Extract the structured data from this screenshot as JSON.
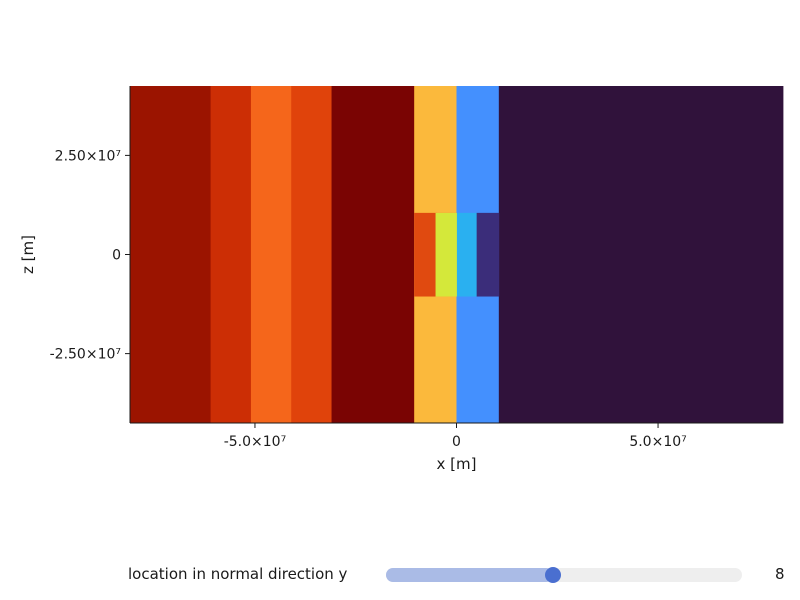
{
  "chart_data": {
    "type": "heatmap",
    "xlabel": "x [m]",
    "ylabel": "z [m]",
    "xlim": [
      -81000000,
      81000000
    ],
    "ylim": [
      -42500000,
      42500000
    ],
    "x_ticks": [
      {
        "value": -50000000,
        "label": "-5.0×10⁷"
      },
      {
        "value": 0,
        "label": "0"
      },
      {
        "value": 50000000,
        "label": "5.0×10⁷"
      }
    ],
    "y_ticks": [
      {
        "value": 25000000,
        "label": "2.50×10⁷"
      },
      {
        "value": 0,
        "label": "0"
      },
      {
        "value": -25000000,
        "label": "-2.50×10⁷"
      }
    ],
    "cells": [
      {
        "x0": -81000000,
        "x1": -61000000,
        "z0": -42500000,
        "z1": 42500000,
        "color": "#9b1400"
      },
      {
        "x0": -61000000,
        "x1": -51000000,
        "z0": -42500000,
        "z1": 42500000,
        "color": "#cc2e05"
      },
      {
        "x0": -51000000,
        "x1": -41000000,
        "z0": -42500000,
        "z1": 42500000,
        "color": "#f5661b"
      },
      {
        "x0": -41000000,
        "x1": -31000000,
        "z0": -42500000,
        "z1": 42500000,
        "color": "#e0430b"
      },
      {
        "x0": -31000000,
        "x1": -10500000,
        "z0": -42500000,
        "z1": 42500000,
        "color": "#7a0403"
      },
      {
        "x0": -10500000,
        "x1": 0,
        "z0": -42500000,
        "z1": 42500000,
        "color": "#fbb93c"
      },
      {
        "x0": 0,
        "x1": 10500000,
        "z0": -42500000,
        "z1": 42500000,
        "color": "#4490fe"
      },
      {
        "x0": 10500000,
        "x1": 81000000,
        "z0": -42500000,
        "z1": 42500000,
        "color": "#30123b"
      },
      {
        "x0": -10500000,
        "x1": -5000000,
        "z0": -10500000,
        "z1": 10500000,
        "color": "#e04a10"
      },
      {
        "x0": -5000000,
        "x1": 0,
        "z0": -10500000,
        "z1": 10500000,
        "color": "#f06a1e"
      },
      {
        "x0": 0,
        "x1": 5000000,
        "z0": -10500000,
        "z1": 10500000,
        "color": "#2ab0f0"
      },
      {
        "x0": 5000000,
        "x1": 10500000,
        "z0": -10500000,
        "z1": 10500000,
        "color": "#3b2d7a"
      },
      {
        "x0": -5200000,
        "x1": 0,
        "z0": -10500000,
        "z1": 10500000,
        "color": "#d4e83a"
      }
    ]
  },
  "slider": {
    "label": "location in normal direction y",
    "value": "8",
    "fraction": 0.47,
    "track_color": "#eeeeee",
    "fill_color": "#aabbe6",
    "handle_color": "#4a6fd0"
  }
}
